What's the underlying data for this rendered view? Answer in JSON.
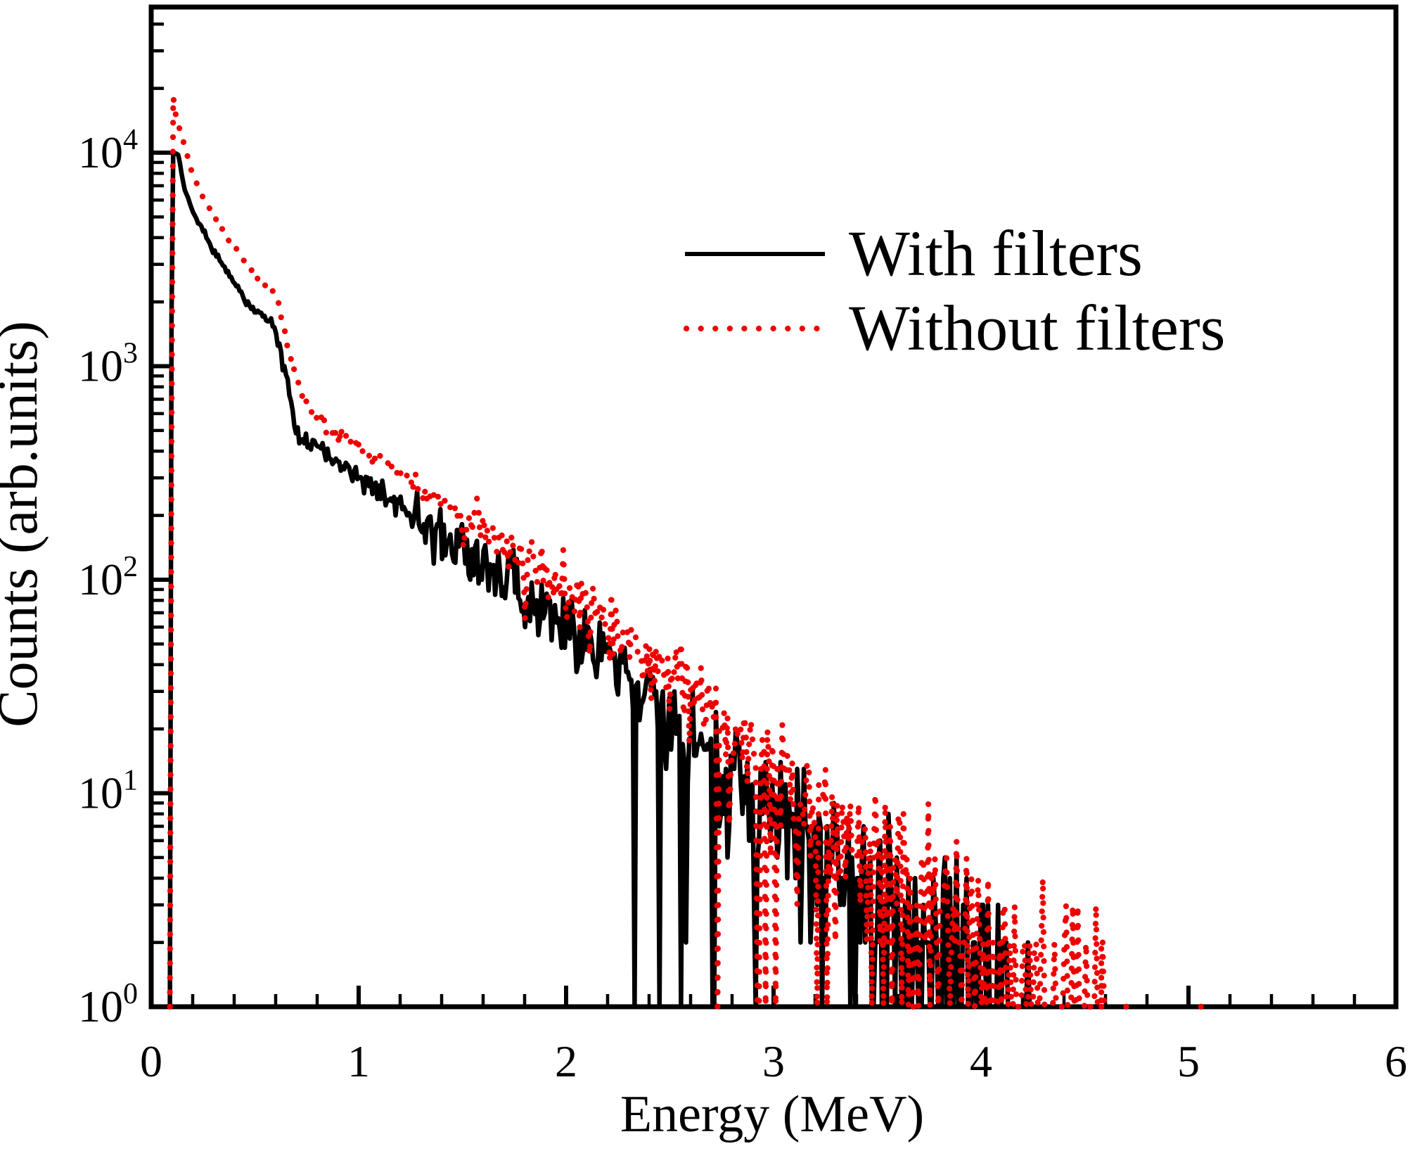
{
  "legend": {
    "items": [
      {
        "label": "With filters",
        "color": "#000000",
        "style": "solid"
      },
      {
        "label": "Without filters",
        "color": "#ee0000",
        "style": "dotted"
      }
    ]
  },
  "chart_data": {
    "type": "line",
    "title": "",
    "xlabel": "Energy (MeV)",
    "ylabel": "Counts (arb.units)",
    "background": "#ffffff",
    "grid": false,
    "legend_position": "upper right",
    "x_axis": {
      "min": 0,
      "max": 6,
      "major_ticks": [
        0,
        1,
        2,
        3,
        4,
        5,
        6
      ],
      "tick_labels": [
        "0",
        "1",
        "2",
        "3",
        "4",
        "5",
        "6"
      ],
      "minor_step": 0.2
    },
    "y_axis": {
      "scale": "log10",
      "min": 1,
      "max": 48000,
      "tick_exponents": [
        0,
        1,
        2,
        3,
        4
      ],
      "tick_base": "10"
    },
    "series": [
      {
        "name": "With filters",
        "color": "#000000",
        "line_style": "solid",
        "x_start": 0.09,
        "x_end": 4.25,
        "anchors_note": "trend anchors [energy_MeV, counts] read from figure; spectrum rendered as anchors + counting noise",
        "anchors": [
          [
            0.09,
            1
          ],
          [
            0.1,
            10300
          ],
          [
            0.13,
            9800
          ],
          [
            0.16,
            6900
          ],
          [
            0.2,
            5300
          ],
          [
            0.25,
            4300
          ],
          [
            0.3,
            3500
          ],
          [
            0.35,
            2950
          ],
          [
            0.4,
            2480
          ],
          [
            0.45,
            2070
          ],
          [
            0.5,
            1800
          ],
          [
            0.54,
            1700
          ],
          [
            0.58,
            1620
          ],
          [
            0.62,
            1280
          ],
          [
            0.66,
            790
          ],
          [
            0.7,
            500
          ],
          [
            0.75,
            450
          ],
          [
            0.82,
            405
          ],
          [
            0.9,
            340
          ],
          [
            0.97,
            310
          ],
          [
            1.03,
            290
          ],
          [
            1.1,
            260
          ],
          [
            1.2,
            222
          ],
          [
            1.3,
            190
          ],
          [
            1.45,
            148
          ],
          [
            1.6,
            115
          ],
          [
            1.75,
            92
          ],
          [
            1.9,
            70
          ],
          [
            2.0,
            58
          ],
          [
            2.2,
            41
          ],
          [
            2.4,
            28
          ],
          [
            2.6,
            19
          ],
          [
            2.8,
            12.5
          ],
          [
            3.0,
            8.5
          ],
          [
            3.2,
            5.8
          ],
          [
            3.4,
            4.0
          ],
          [
            3.6,
            2.8
          ],
          [
            3.8,
            1.9
          ],
          [
            4.0,
            1.35
          ],
          [
            4.25,
            1.0
          ]
        ],
        "isolated_points": []
      },
      {
        "name": "Without filters",
        "color": "#ee0000",
        "line_style": "dotted",
        "x_start": 0.09,
        "x_end": 4.62,
        "anchors": [
          [
            0.09,
            1
          ],
          [
            0.103,
            19000
          ],
          [
            0.12,
            14800
          ],
          [
            0.15,
            11600
          ],
          [
            0.2,
            7900
          ],
          [
            0.25,
            6200
          ],
          [
            0.3,
            5050
          ],
          [
            0.35,
            4250
          ],
          [
            0.4,
            3600
          ],
          [
            0.45,
            3100
          ],
          [
            0.49,
            2820
          ],
          [
            0.53,
            2550
          ],
          [
            0.57,
            2300
          ],
          [
            0.61,
            2000
          ],
          [
            0.65,
            1400
          ],
          [
            0.69,
            950
          ],
          [
            0.73,
            730
          ],
          [
            0.8,
            560
          ],
          [
            0.9,
            480
          ],
          [
            1.0,
            430
          ],
          [
            1.1,
            370
          ],
          [
            1.2,
            315
          ],
          [
            1.3,
            268
          ],
          [
            1.45,
            215
          ],
          [
            1.6,
            170
          ],
          [
            1.75,
            135
          ],
          [
            1.9,
            105
          ],
          [
            2.0,
            88
          ],
          [
            2.2,
            60
          ],
          [
            2.4,
            42
          ],
          [
            2.6,
            29
          ],
          [
            2.8,
            20
          ],
          [
            3.0,
            13.5
          ],
          [
            3.2,
            9.0
          ],
          [
            3.4,
            6.2
          ],
          [
            3.6,
            4.2
          ],
          [
            3.8,
            2.8
          ],
          [
            4.0,
            1.9
          ],
          [
            4.2,
            1.4
          ],
          [
            4.45,
            1.1
          ],
          [
            4.62,
            1.0
          ]
        ],
        "isolated_points": [
          [
            4.58,
            2
          ],
          [
            4.7,
            1
          ],
          [
            5.06,
            1
          ]
        ]
      }
    ],
    "noise": {
      "model": "poisson",
      "seed": 11,
      "overdispersion": 0.15,
      "dropout_below": 45,
      "dropout_max_p": 0.09,
      "bin_width_mev": 0.008
    }
  }
}
